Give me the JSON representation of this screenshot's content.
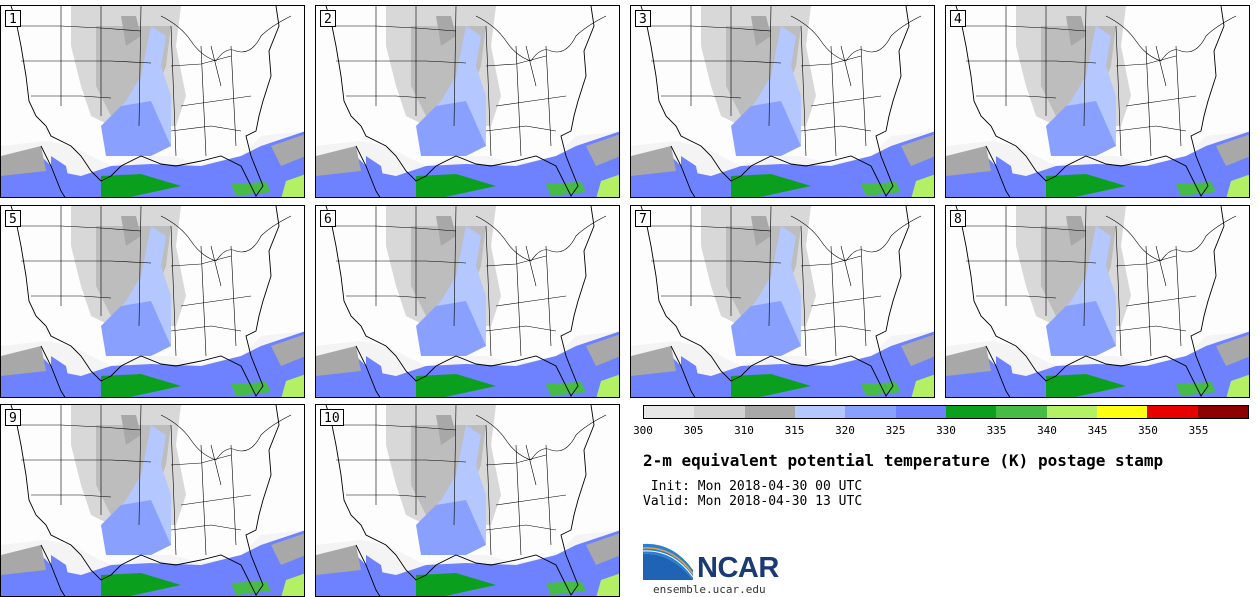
{
  "panels": [
    {
      "label": "1"
    },
    {
      "label": "2"
    },
    {
      "label": "3"
    },
    {
      "label": "4"
    },
    {
      "label": "5"
    },
    {
      "label": "6"
    },
    {
      "label": "7"
    },
    {
      "label": "8"
    },
    {
      "label": "9"
    },
    {
      "label": "10"
    }
  ],
  "colorbar": {
    "colors": [
      "#e6e6e6",
      "#d2d2d2",
      "#a8a8a8",
      "#b4c8ff",
      "#8aa0ff",
      "#6e82ff",
      "#0aa01e",
      "#46bb46",
      "#b4f064",
      "#ffff14",
      "#e60000",
      "#8c0000"
    ],
    "ticks": [
      "300",
      "305",
      "310",
      "315",
      "320",
      "325",
      "330",
      "335",
      "340",
      "345",
      "350",
      "355"
    ]
  },
  "title": "2-m equivalent potential temperature (K) postage stamp",
  "init": " Init: Mon 2018-04-30 00 UTC",
  "valid": "Valid: Mon 2018-04-30 13 UTC",
  "logo": {
    "name": "NCAR-logo",
    "text": "NCAR",
    "colors": {
      "blue": "#1a3a73",
      "swoosh": "#2a7fd4",
      "orange": "#e6a23c"
    }
  },
  "site": "ensemble.ucar.edu"
}
